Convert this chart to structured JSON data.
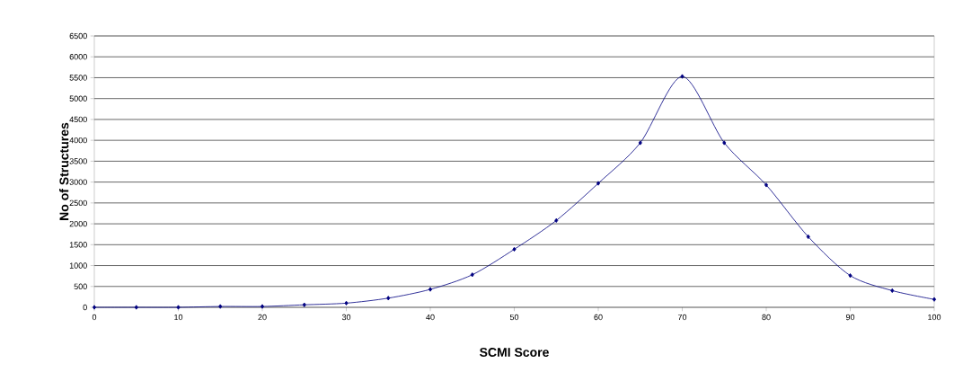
{
  "chart_data": {
    "type": "line",
    "xlabel": "SCMI Score",
    "ylabel": "No of Structures",
    "x": [
      0,
      5,
      10,
      15,
      20,
      25,
      30,
      35,
      40,
      45,
      50,
      55,
      60,
      65,
      70,
      75,
      80,
      85,
      90,
      95,
      100
    ],
    "series": [
      {
        "color": "#000080",
        "values": [
          0,
          0,
          0,
          20,
          20,
          60,
          100,
          220,
          430,
          780,
          1390,
          2080,
          2970,
          3940,
          5530,
          3940,
          2930,
          1690,
          760,
          400,
          190
        ]
      }
    ],
    "xlim": [
      0,
      100
    ],
    "ylim": [
      0,
      6500
    ],
    "xticks": [
      0,
      10,
      20,
      30,
      40,
      50,
      60,
      70,
      80,
      90,
      100
    ],
    "yticks": [
      0,
      500,
      1000,
      1500,
      2000,
      2500,
      3000,
      3500,
      4000,
      4500,
      5000,
      5500,
      6000,
      6500
    ],
    "grid": "y",
    "marker": "diamond",
    "line_style": "solid"
  }
}
